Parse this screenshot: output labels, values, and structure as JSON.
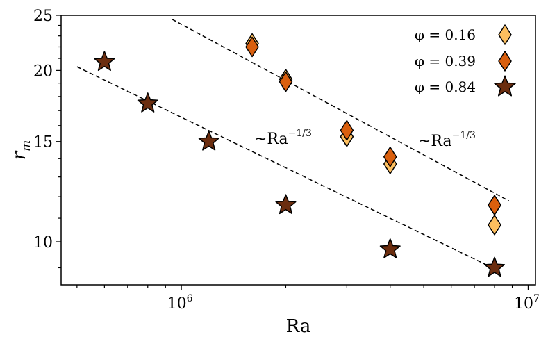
{
  "chart_data": {
    "type": "scatter",
    "xscale": "log",
    "yscale": "log",
    "xlim": [
      450000,
      10500000
    ],
    "ylim": [
      8.4,
      25
    ],
    "xlabel": "Ra",
    "ylabel": "r_m",
    "x_ticks": [
      {
        "value": 1000000,
        "base": "10",
        "exp": "6"
      },
      {
        "value": 10000000,
        "base": "10",
        "exp": "7"
      }
    ],
    "y_ticks": [
      {
        "value": 10,
        "label": "10"
      },
      {
        "value": 15,
        "label": "15"
      },
      {
        "value": 20,
        "label": "20"
      },
      {
        "value": 25,
        "label": "25"
      }
    ],
    "legend_position": "top-right",
    "series": [
      {
        "name": "φ = 0.16",
        "marker": "diamond",
        "color": "#fdbf5f",
        "points": [
          {
            "x": 1600000,
            "y": 22.3
          },
          {
            "x": 2000000,
            "y": 19.3
          },
          {
            "x": 3000000,
            "y": 15.3
          },
          {
            "x": 4000000,
            "y": 13.7
          },
          {
            "x": 8000000,
            "y": 10.7
          }
        ]
      },
      {
        "name": "φ = 0.39",
        "marker": "diamond",
        "color": "#d95f0e",
        "points": [
          {
            "x": 1600000,
            "y": 22.0
          },
          {
            "x": 2000000,
            "y": 19.1
          },
          {
            "x": 3000000,
            "y": 15.7
          },
          {
            "x": 4000000,
            "y": 14.1
          },
          {
            "x": 8000000,
            "y": 11.6
          }
        ]
      },
      {
        "name": "φ = 0.84",
        "marker": "star",
        "color": "#6b2d0f",
        "points": [
          {
            "x": 600000,
            "y": 20.7
          },
          {
            "x": 800000,
            "y": 17.5
          },
          {
            "x": 1200000,
            "y": 15.0
          },
          {
            "x": 2000000,
            "y": 11.6
          },
          {
            "x": 4000000,
            "y": 9.7
          },
          {
            "x": 8000000,
            "y": 9.0
          }
        ]
      }
    ],
    "fit_lines": [
      {
        "label_base": "~Ra",
        "label_exp": "−1/3",
        "x": [
          940000,
          8800000
        ],
        "y": [
          24.6,
          11.8
        ]
      },
      {
        "label_base": "~Ra",
        "label_exp": "−1/3",
        "x": [
          500000,
          8200000
        ],
        "y": [
          20.3,
          8.9
        ]
      }
    ]
  }
}
